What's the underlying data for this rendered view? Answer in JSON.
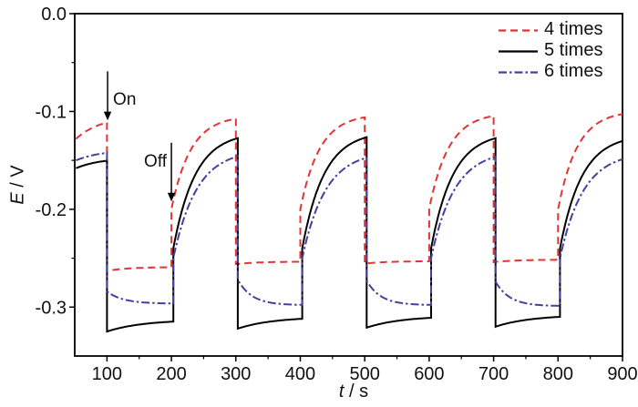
{
  "figure": {
    "background": "#ffffff",
    "frame_color": "#000000"
  },
  "chart_data": {
    "type": "line",
    "title": "",
    "xlabel": "t / s",
    "xlabel_var": "t",
    "xlabel_unit": "s",
    "ylabel": "E / V",
    "ylabel_var": "E",
    "ylabel_unit": "V",
    "axis_label_separator": " / ",
    "xlim": [
      50,
      900
    ],
    "ylim": [
      -0.35,
      0.0
    ],
    "grid": false,
    "x_axis": {
      "major_ticks": [
        100,
        200,
        300,
        400,
        500,
        600,
        700,
        800,
        900
      ],
      "tick_labels": [
        "100",
        "200",
        "300",
        "400",
        "500",
        "600",
        "700",
        "800",
        "900"
      ],
      "minor_ticks": [
        150,
        250,
        350,
        450,
        550,
        650,
        750,
        850
      ]
    },
    "y_axis": {
      "major_ticks": [
        0.0,
        -0.1,
        -0.2,
        -0.3
      ],
      "tick_labels": [
        "0.0",
        "-0.1",
        "-0.2",
        "-0.3"
      ],
      "minor_ticks": [
        -0.05,
        -0.15,
        -0.25
      ]
    },
    "legend": {
      "position": "upper-right",
      "frame": false
    },
    "annotations": [
      {
        "label": "On",
        "t": 101,
        "arrow_top_E": -0.059,
        "arrow_tip_E": -0.109,
        "label_side": "right"
      },
      {
        "label": "Off",
        "t": 200,
        "arrow_top_E": -0.132,
        "arrow_tip_E": -0.192,
        "label_side": "left"
      }
    ],
    "light_on_times_s": [
      100,
      300,
      500,
      700
    ],
    "light_off_times_s": [
      200,
      400,
      600,
      800
    ],
    "segments_format": "[t_start_s, t_end_s, E_start_V, E_asymptote_V, tau_s]; E(t)=E_asymptote+(E_start-E_asymptote)*exp(-(t-t_start)/tau); consecutive segments join with vertical steps at light on/off transitions",
    "series": [
      {
        "name": "4 times",
        "color": "#e13434",
        "line_style": "dashed",
        "dash": "8 5",
        "width": 2,
        "summary": {
          "start_E": -0.128,
          "on_plateau_E": [
            -0.26,
            -0.254,
            -0.253,
            -0.252
          ],
          "off_peak_E": [
            -0.111,
            -0.108,
            -0.106,
            -0.105,
            -0.103
          ]
        },
        "segments": [
          [
            52,
            100,
            -0.128,
            -0.104,
            40
          ],
          [
            100,
            200,
            -0.263,
            -0.259,
            35
          ],
          [
            200,
            300,
            -0.2,
            -0.104,
            30
          ],
          [
            300,
            400,
            -0.256,
            -0.2535,
            35
          ],
          [
            400,
            500,
            -0.2,
            -0.1025,
            30
          ],
          [
            500,
            600,
            -0.2555,
            -0.253,
            35
          ],
          [
            600,
            700,
            -0.2,
            -0.101,
            30
          ],
          [
            700,
            800,
            -0.254,
            -0.2515,
            35
          ],
          [
            800,
            900,
            -0.2,
            -0.099,
            30
          ]
        ]
      },
      {
        "name": "5 times",
        "color": "#000000",
        "line_style": "solid",
        "dash": "",
        "width": 2,
        "summary": {
          "start_E": -0.158,
          "on_plateau_E": [
            -0.325,
            -0.322,
            -0.321,
            -0.32
          ],
          "off_peak_E": [
            -0.15,
            -0.127,
            -0.126,
            -0.127,
            -0.13
          ]
        },
        "segments": [
          [
            52,
            100,
            -0.158,
            -0.147,
            40
          ],
          [
            100,
            203,
            -0.325,
            -0.313,
            55
          ],
          [
            203,
            303,
            -0.24,
            -0.121,
            34
          ],
          [
            303,
            403,
            -0.322,
            -0.31,
            55
          ],
          [
            403,
            503,
            -0.24,
            -0.12,
            34
          ],
          [
            503,
            603,
            -0.321,
            -0.309,
            55
          ],
          [
            603,
            703,
            -0.24,
            -0.121,
            34
          ],
          [
            703,
            803,
            -0.32,
            -0.308,
            55
          ],
          [
            803,
            900,
            -0.24,
            -0.1235,
            34
          ]
        ]
      },
      {
        "name": "6 times",
        "color": "#42419e",
        "line_style": "dash-dot",
        "dash": "9 3 2.5 3",
        "width": 2,
        "summary": {
          "start_E": -0.15,
          "on_plateau_E": [
            -0.296,
            -0.298,
            -0.298,
            -0.299
          ],
          "off_peak_E": [
            -0.142,
            -0.146,
            -0.147,
            -0.146,
            -0.149
          ]
        },
        "segments": [
          [
            52,
            100,
            -0.15,
            -0.139,
            40
          ],
          [
            100,
            203,
            -0.284,
            -0.2965,
            25
          ],
          [
            203,
            303,
            -0.25,
            -0.139,
            36
          ],
          [
            303,
            403,
            -0.272,
            -0.298,
            22
          ],
          [
            403,
            503,
            -0.25,
            -0.1405,
            36
          ],
          [
            503,
            603,
            -0.273,
            -0.298,
            22
          ],
          [
            603,
            703,
            -0.25,
            -0.1395,
            36
          ],
          [
            703,
            803,
            -0.274,
            -0.299,
            22
          ],
          [
            803,
            900,
            -0.25,
            -0.1415,
            36
          ]
        ]
      }
    ]
  }
}
